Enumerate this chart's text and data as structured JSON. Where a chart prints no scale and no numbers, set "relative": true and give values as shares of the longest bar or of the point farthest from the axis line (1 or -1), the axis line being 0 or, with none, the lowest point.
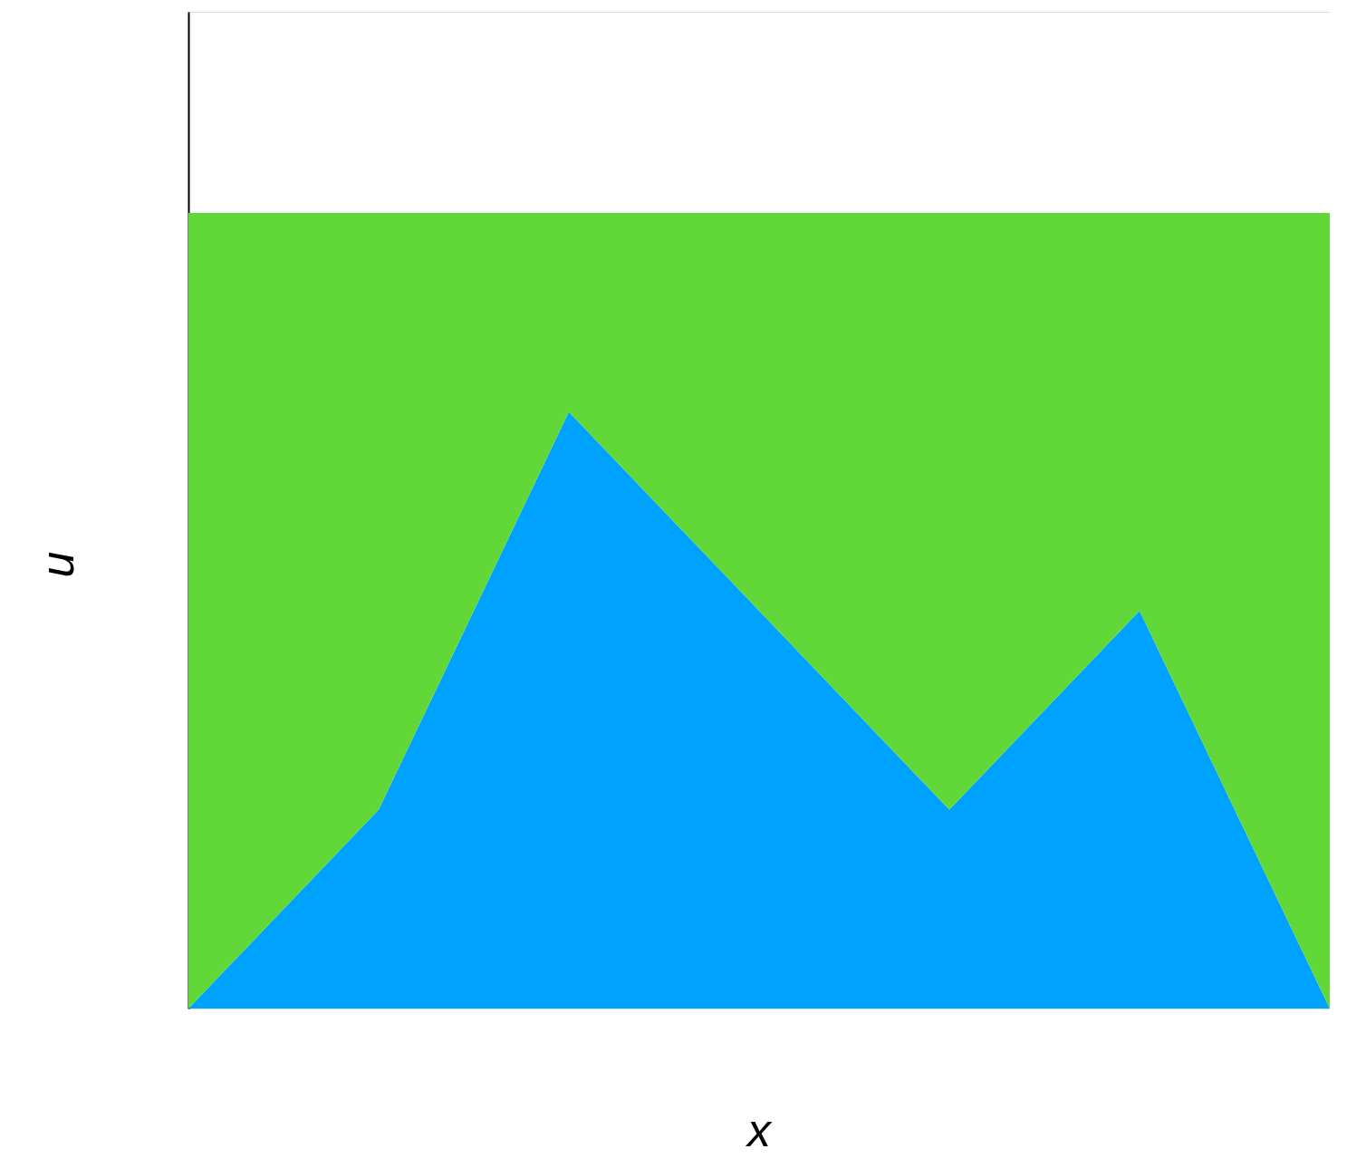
{
  "chart_data": {
    "type": "area",
    "relative": true,
    "stacked": true,
    "xlabel": "x",
    "ylabel": "u",
    "categories": [
      null,
      null,
      null,
      null,
      null,
      null,
      null
    ],
    "series": [
      {
        "color": "#00a2ff",
        "values": [
          0,
          0.25,
          0.75,
          0.5,
          0.25,
          0.5,
          0
        ]
      },
      {
        "color": "#62d838",
        "values": [
          1,
          0.75,
          0.25,
          0.5,
          0.75,
          0.5,
          1
        ]
      }
    ],
    "grid": false,
    "tick_labels": false
  }
}
